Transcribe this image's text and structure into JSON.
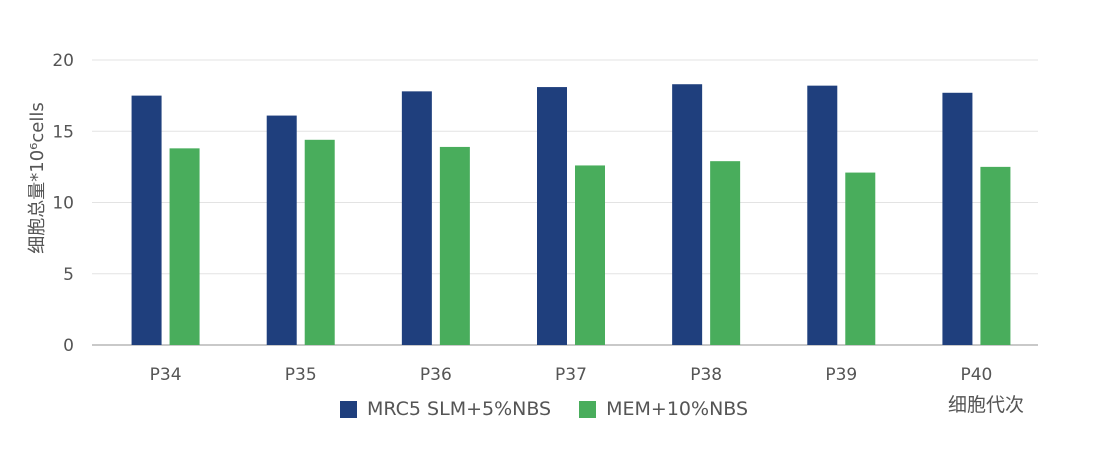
{
  "chart_data": {
    "type": "bar",
    "title": "",
    "xlabel": "细胞代次",
    "ylabel": "细胞总量*10⁶cells",
    "categories": [
      "P34",
      "P35",
      "P36",
      "P37",
      "P38",
      "P39",
      "P40"
    ],
    "series": [
      {
        "name": "MRC5 SLM+5%NBS",
        "color": "#1f3f7d",
        "values": [
          17.5,
          16.1,
          17.8,
          18.1,
          18.3,
          18.2,
          17.7
        ]
      },
      {
        "name": "MEM+10%NBS",
        "color": "#49ad5c",
        "values": [
          13.8,
          14.4,
          13.9,
          12.6,
          12.9,
          12.1,
          12.5
        ]
      }
    ],
    "ylim": [
      0,
      20
    ],
    "yticks": [
      "0",
      "5",
      "10",
      "15",
      "20"
    ],
    "grid": true,
    "legend": "bottom"
  }
}
